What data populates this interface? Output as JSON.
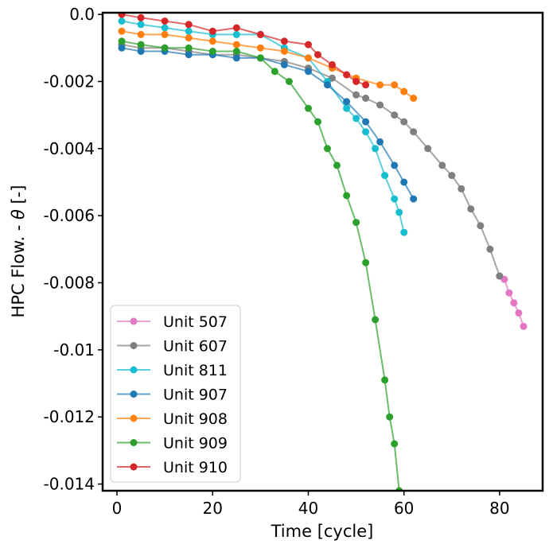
{
  "chart_data": {
    "type": "line",
    "title": "",
    "xlabel": "Time [cycle]",
    "ylabel_prefix": "HPC Flow. - ",
    "ylabel_symbol": "θ",
    "ylabel_suffix": " [-]",
    "xlim": [
      -3,
      89
    ],
    "ylim": [
      -0.0142,
      5e-05
    ],
    "x_ticks": [
      0,
      20,
      40,
      60,
      80
    ],
    "x_tick_labels": [
      "0",
      "20",
      "40",
      "60",
      "80"
    ],
    "y_ticks": [
      0,
      -0.002,
      -0.004,
      -0.006,
      -0.008,
      -0.01,
      -0.012,
      -0.014
    ],
    "y_tick_labels": [
      "0.0",
      "-0.002",
      "-0.004",
      "-0.006",
      "-0.008",
      "-0.01",
      "-0.012",
      "-0.014"
    ],
    "grid": false,
    "legend_position": "lower-left",
    "series": [
      {
        "name": "Unit 507",
        "color": "#e377c2",
        "x": [
          80,
          81,
          82,
          83,
          84,
          85
        ],
        "y": [
          -0.0078,
          -0.0079,
          -0.0083,
          -0.0086,
          -0.0089,
          -0.0093
        ]
      },
      {
        "name": "Unit 607",
        "color": "#7f7f7f",
        "x": [
          1,
          5,
          10,
          15,
          20,
          25,
          30,
          35,
          40,
          45,
          50,
          52,
          55,
          58,
          60,
          62,
          65,
          68,
          70,
          72,
          74,
          76,
          78,
          80
        ],
        "y": [
          -0.0009,
          -0.001,
          -0.001,
          -0.0011,
          -0.0012,
          -0.0012,
          -0.0013,
          -0.0014,
          -0.0016,
          -0.0019,
          -0.0024,
          -0.0025,
          -0.0027,
          -0.003,
          -0.0032,
          -0.0035,
          -0.004,
          -0.0045,
          -0.0048,
          -0.0052,
          -0.0058,
          -0.0063,
          -0.007,
          -0.0078
        ]
      },
      {
        "name": "Unit 811",
        "color": "#17becf",
        "x": [
          1,
          5,
          10,
          15,
          20,
          25,
          30,
          35,
          40,
          44,
          48,
          50,
          52,
          54,
          56,
          58,
          59,
          60
        ],
        "y": [
          -0.0002,
          -0.0003,
          -0.0004,
          -0.0005,
          -0.0006,
          -0.0006,
          -0.0006,
          -0.001,
          -0.0013,
          -0.002,
          -0.0028,
          -0.0031,
          -0.0035,
          -0.004,
          -0.0048,
          -0.0055,
          -0.0059,
          -0.0065
        ]
      },
      {
        "name": "Unit 907",
        "color": "#1f77b4",
        "x": [
          1,
          5,
          10,
          15,
          20,
          25,
          30,
          35,
          40,
          44,
          48,
          52,
          55,
          58,
          60,
          62
        ],
        "y": [
          -0.001,
          -0.0011,
          -0.0011,
          -0.0012,
          -0.0012,
          -0.0013,
          -0.0013,
          -0.0015,
          -0.0017,
          -0.0021,
          -0.0026,
          -0.0032,
          -0.0038,
          -0.0045,
          -0.005,
          -0.0055
        ]
      },
      {
        "name": "Unit 908",
        "color": "#ff7f0e",
        "x": [
          1,
          5,
          10,
          15,
          20,
          25,
          30,
          35,
          40,
          45,
          50,
          55,
          58,
          60,
          62
        ],
        "y": [
          -0.0005,
          -0.0006,
          -0.0006,
          -0.0007,
          -0.0008,
          -0.0009,
          -0.001,
          -0.0011,
          -0.0013,
          -0.0016,
          -0.0019,
          -0.0021,
          -0.0021,
          -0.0023,
          -0.0025
        ]
      },
      {
        "name": "Unit 909",
        "color": "#2ca02c",
        "x": [
          1,
          5,
          10,
          15,
          20,
          25,
          30,
          33,
          36,
          40,
          42,
          44,
          46,
          48,
          50,
          52,
          54,
          56,
          57,
          58,
          59
        ],
        "y": [
          -0.0008,
          -0.0009,
          -0.001,
          -0.001,
          -0.0011,
          -0.0011,
          -0.0013,
          -0.0017,
          -0.002,
          -0.0028,
          -0.0032,
          -0.004,
          -0.0045,
          -0.0054,
          -0.0062,
          -0.0074,
          -0.0091,
          -0.0109,
          -0.012,
          -0.0128,
          -0.0142
        ]
      },
      {
        "name": "Unit 910",
        "color": "#d62728",
        "x": [
          1,
          5,
          10,
          15,
          20,
          25,
          30,
          35,
          40,
          42,
          45,
          48,
          50,
          52
        ],
        "y": [
          0.0,
          -0.0001,
          -0.0002,
          -0.0003,
          -0.0005,
          -0.0004,
          -0.0006,
          -0.0008,
          -0.0009,
          -0.0012,
          -0.0015,
          -0.0018,
          -0.002,
          -0.0021
        ]
      }
    ]
  }
}
